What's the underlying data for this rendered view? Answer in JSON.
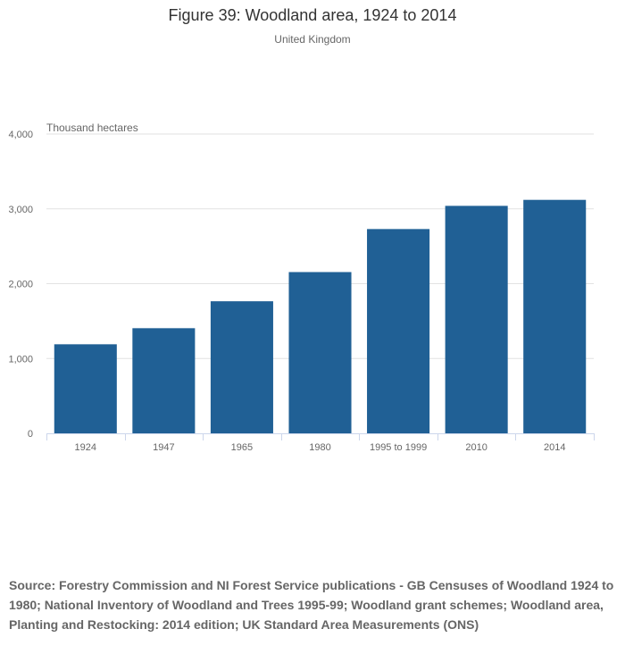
{
  "chart_data": {
    "type": "bar",
    "title": "Figure 39: Woodland area, 1924 to 2014",
    "subtitle": "United Kingdom",
    "ylabel": "Thousand hectares",
    "xlabel": "",
    "categories": [
      "1924",
      "1947",
      "1965",
      "1980",
      "1995 to 1999",
      "2010",
      "2014"
    ],
    "values": [
      1190,
      1405,
      1765,
      2155,
      2730,
      3040,
      3120
    ],
    "ylim": [
      0,
      4000
    ],
    "yticks": [
      0,
      1000,
      2000,
      3000,
      4000
    ],
    "ytick_labels": [
      "0",
      "1,000",
      "2,000",
      "3,000",
      "4,000"
    ],
    "grid": true,
    "legend": "none",
    "bar_color": "#206095",
    "source": "Source: Forestry Commission and NI Forest Service publications - GB Censuses of Woodland 1924 to 1980; National Inventory of Woodland and Trees 1995-99; Woodland grant schemes; Woodland area, Planting and Restocking: 2014 edition; UK Standard Area Measurements (ONS)"
  }
}
